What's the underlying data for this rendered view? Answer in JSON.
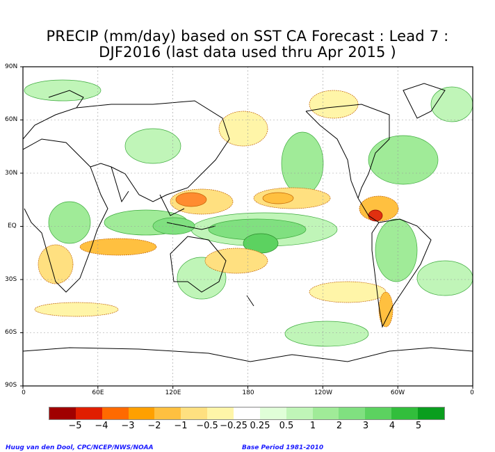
{
  "title": {
    "line1": "PRECIP (mm/day) based on SST CA Forecast : Lead 7 :",
    "line2": "DJF2016 (last data used thru Apr 2015 )"
  },
  "axes": {
    "lat_labels": [
      "90N",
      "60N",
      "30N",
      "EQ",
      "30S",
      "60S",
      "90S"
    ],
    "lon_labels": [
      "0",
      "60E",
      "120E",
      "180",
      "120W",
      "60W",
      "0"
    ]
  },
  "legend": {
    "labels": [
      "−5",
      "−4",
      "−3",
      "−2",
      "−1",
      "−0.5",
      "−0.25",
      "0.25",
      "0.5",
      "1",
      "2",
      "3",
      "4",
      "5"
    ],
    "colors": [
      "#a00000",
      "#e01e00",
      "#ff6a00",
      "#ffa000",
      "#ffc040",
      "#ffe080",
      "#fff5a8",
      "#ffffff",
      "#e0ffd8",
      "#c0f5b8",
      "#a0eb98",
      "#80e080",
      "#5cd260",
      "#32be3c",
      "#0a9e1e"
    ]
  },
  "footer": {
    "left": "Huug van den Dool, CPC/NCEP/NWS/NOAA",
    "right": "Base Period 1981-2010"
  },
  "map_colors": {
    "wet": [
      "#c0f5b8",
      "#a0eb98",
      "#80e080",
      "#5cd260"
    ],
    "dry": [
      "#fff5a8",
      "#ffe080",
      "#ffc040",
      "#ff8c30",
      "#e03010"
    ]
  }
}
